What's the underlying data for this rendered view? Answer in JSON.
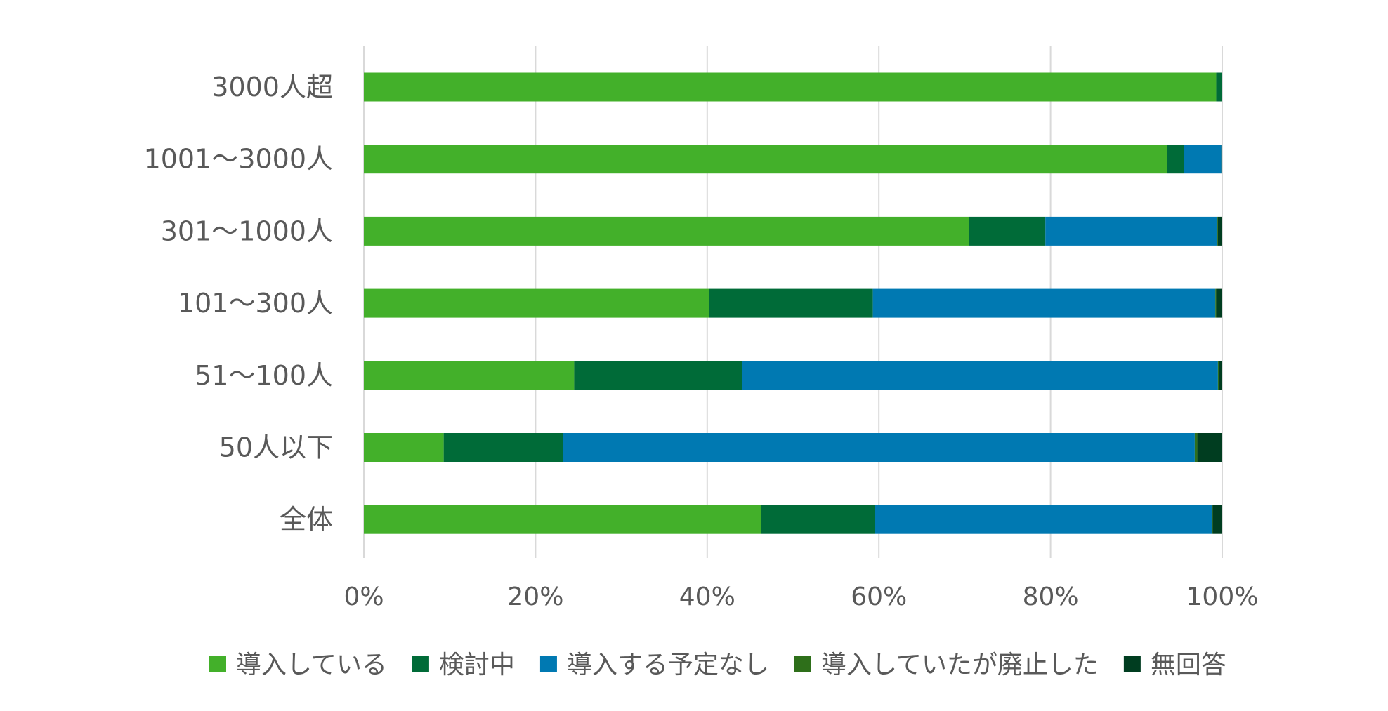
{
  "chart_data": {
    "type": "bar",
    "orientation": "horizontal",
    "stacked": true,
    "categories": [
      "3000人超",
      "1001～3000人",
      "301～1000人",
      "101～300人",
      "51～100人",
      "50人以下",
      "全体"
    ],
    "series": [
      {
        "name": "導入している",
        "color": "#43b02a",
        "values": [
          99.3,
          93.6,
          70.5,
          40.2,
          24.5,
          9.3,
          46.3
        ]
      },
      {
        "name": "検討中",
        "color": "#006b38",
        "values": [
          0.7,
          1.9,
          8.9,
          19.1,
          19.6,
          13.9,
          13.2
        ]
      },
      {
        "name": "導入する予定なし",
        "color": "#0079b2",
        "values": [
          0.0,
          4.4,
          20.0,
          39.9,
          55.4,
          73.6,
          39.3
        ]
      },
      {
        "name": "導入していたが廃止した",
        "color": "#2e6f1a",
        "values": [
          0.0,
          0.0,
          0.1,
          0.1,
          0.1,
          0.3,
          0.1
        ]
      },
      {
        "name": "無回答",
        "color": "#003d20",
        "values": [
          0.0,
          0.1,
          0.5,
          0.7,
          0.4,
          2.9,
          1.1
        ]
      }
    ],
    "xlim": [
      0,
      100
    ],
    "xticks": [
      "0%",
      "20%",
      "40%",
      "60%",
      "80%",
      "100%"
    ],
    "xtick_values": [
      0,
      20,
      40,
      60,
      80,
      100
    ],
    "grid": true,
    "legend_position": "bottom",
    "title": "",
    "xlabel": "",
    "ylabel": ""
  }
}
